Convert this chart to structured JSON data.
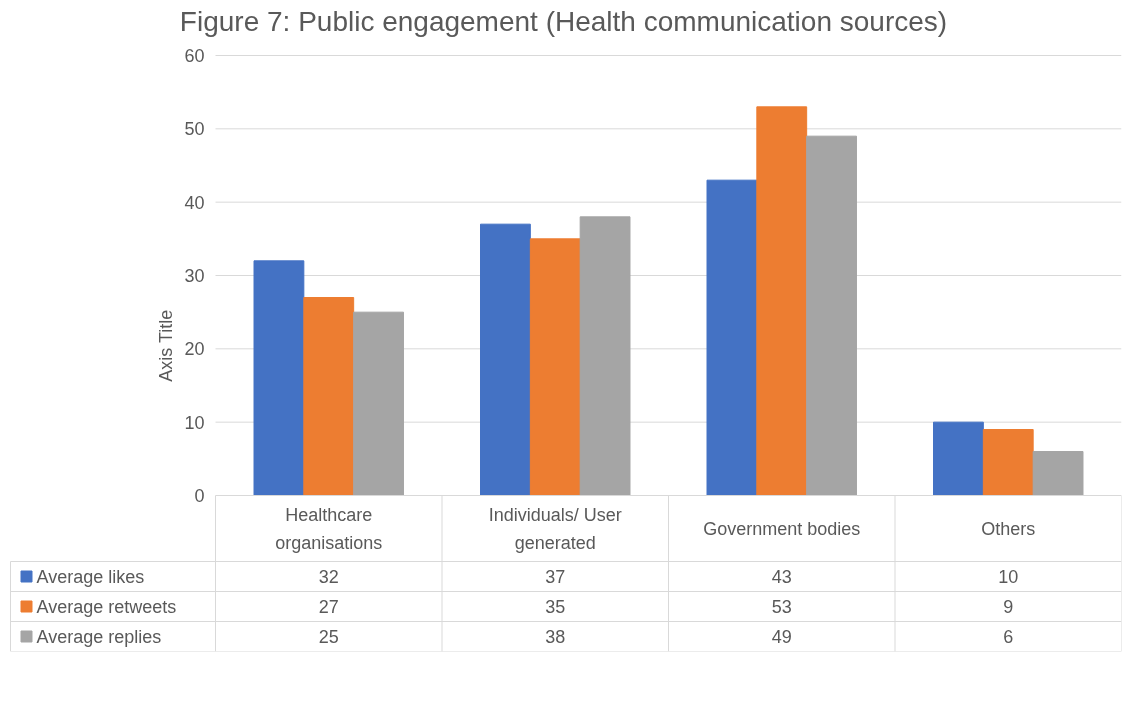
{
  "chart_data": {
    "type": "bar",
    "title": "Figure 7: Public engagement (Health communication sources)",
    "ylabel": "Axis Title",
    "categories": [
      "Healthcare organisations",
      "Individuals/ User generated",
      "Government bodies",
      "Others"
    ],
    "series": [
      {
        "name": "Average likes",
        "color": "#4472c4",
        "values": [
          32,
          37,
          43,
          10
        ]
      },
      {
        "name": "Average retweets",
        "color": "#ed7d31",
        "values": [
          27,
          35,
          53,
          9
        ]
      },
      {
        "name": "Average replies",
        "color": "#a5a5a5",
        "values": [
          25,
          38,
          49,
          6
        ]
      }
    ],
    "ylim": [
      0,
      60
    ],
    "yticks": [
      0,
      10,
      20,
      30,
      40,
      50,
      60
    ],
    "grid": "y",
    "legend": "bottom",
    "data_labels": true
  }
}
